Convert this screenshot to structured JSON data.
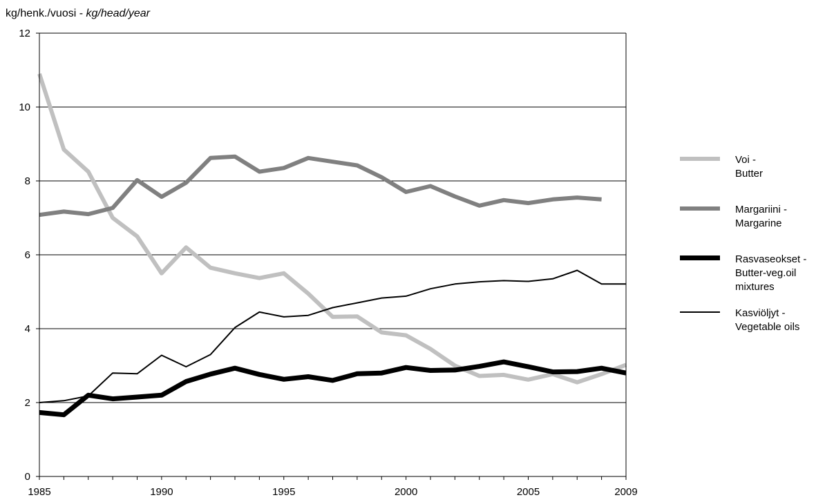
{
  "chart_data": {
    "type": "line",
    "ylabel_prefix": "kg/henk./vuosi - ",
    "ylabel_italic": "kg/head/year",
    "x": [
      1985,
      1986,
      1987,
      1988,
      1989,
      1990,
      1991,
      1992,
      1993,
      1994,
      1995,
      1996,
      1997,
      1998,
      1999,
      2000,
      2001,
      2002,
      2003,
      2004,
      2005,
      2006,
      2007,
      2008,
      2009
    ],
    "xlim": [
      1985,
      2009
    ],
    "ylim": [
      0,
      12
    ],
    "xticks": [
      "1985",
      "1990",
      "1995",
      "2000",
      "2005",
      "2009"
    ],
    "yticks": [
      "0",
      "2",
      "4",
      "6",
      "8",
      "10",
      "12"
    ],
    "grid": "horizontal",
    "legend_position": "right",
    "series": [
      {
        "name_line1": "Voi -",
        "name_line2": "Butter",
        "name_line3": "",
        "color": "#c0c0c0",
        "width": 6,
        "values": [
          10.9,
          8.85,
          8.25,
          7.0,
          6.5,
          5.5,
          6.2,
          5.65,
          5.5,
          5.37,
          5.5,
          4.95,
          4.32,
          4.33,
          3.9,
          3.82,
          3.45,
          3.0,
          2.72,
          2.75,
          2.62,
          2.77,
          2.55,
          2.77,
          3.02
        ]
      },
      {
        "name_line1": "Margariini -",
        "name_line2": "Margarine",
        "name_line3": "",
        "color": "#808080",
        "width": 6,
        "values": [
          7.08,
          7.17,
          7.1,
          7.27,
          8.02,
          7.57,
          7.95,
          8.62,
          8.66,
          8.25,
          8.35,
          8.62,
          8.52,
          8.42,
          8.1,
          7.7,
          7.86,
          7.58,
          7.33,
          7.48,
          7.4,
          7.5,
          7.55,
          7.5,
          null
        ]
      },
      {
        "name_line1": "Rasvaseokset -",
        "name_line2": "Butter-veg.oil",
        "name_line3": "mixtures",
        "color": "#000000",
        "width": 7,
        "values": [
          1.73,
          1.67,
          2.2,
          2.1,
          2.15,
          2.2,
          2.57,
          2.77,
          2.93,
          2.76,
          2.63,
          2.7,
          2.6,
          2.78,
          2.8,
          2.95,
          2.87,
          2.88,
          2.98,
          3.1,
          2.97,
          2.83,
          2.84,
          2.93,
          2.8
        ]
      },
      {
        "name_line1": "Kasviöljyt -",
        "name_line2": "Vegetable oils",
        "name_line3": "",
        "color": "#000000",
        "width": 2,
        "values": [
          2.0,
          2.05,
          2.18,
          2.8,
          2.78,
          3.28,
          2.97,
          3.3,
          4.03,
          4.45,
          4.32,
          4.36,
          4.57,
          4.7,
          4.83,
          4.88,
          5.08,
          5.21,
          5.27,
          5.3,
          5.28,
          5.35,
          5.58,
          5.21,
          5.21
        ]
      }
    ]
  }
}
